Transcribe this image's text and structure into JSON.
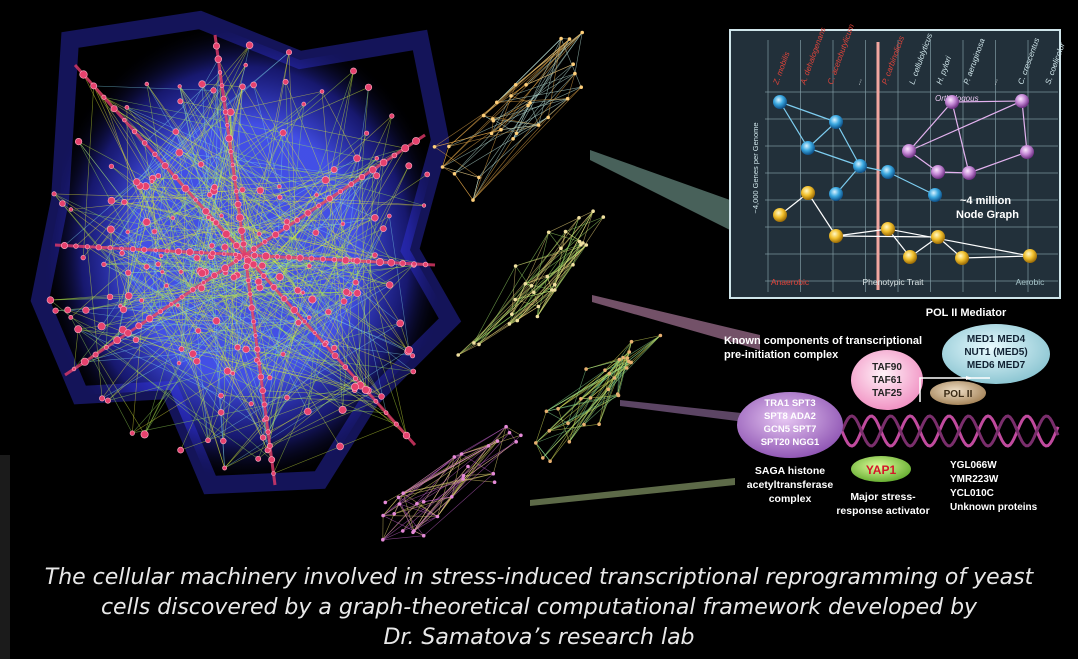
{
  "inset_chart": {
    "species": [
      "Z. mobilis",
      "A. dehalogenans",
      "C. acetobutylicum",
      "...",
      "P. carbinolicus",
      "L. cellulolyticus",
      "H. pylori",
      "P. aeruginosa",
      "...",
      "C. crescentus",
      "S. coelicolor"
    ],
    "ylabel": "~4,000 Genes per Genome",
    "xlabel": "Phenotypic Trait",
    "left_label": "Anaerobic",
    "right_label": "Aerobic",
    "orthologous_label": "Orthologous",
    "node_graph_line1": "~4 million",
    "node_graph_line2": "Node Graph"
  },
  "complexes": {
    "pol2_mediator_title": "POL II Mediator",
    "pol2_mediator_lines": [
      "MED1 MED4",
      "NUT1 (MED5)",
      "MED6 MED7"
    ],
    "known_components_line1": "Known components of transcriptional",
    "known_components_line2": "pre-initiation complex",
    "taf_lines": [
      "TAF90",
      "TAF61",
      "TAF25"
    ],
    "pol2_label": "POL II",
    "saga_lines": [
      "TRA1 SPT3",
      "SPT8 ADA2",
      "GCN5 SPT7",
      "SPT20 NGG1"
    ],
    "saga_caption": [
      "SAGA histone",
      "acetyltransferase",
      "complex"
    ],
    "yap1_label": "YAP1",
    "yap1_caption": [
      "Major stress-",
      "response activator"
    ],
    "unknown_lines": [
      "YGL066W",
      "YMR223W",
      "YCL010C",
      "Unknown proteins"
    ]
  },
  "caption": {
    "line1": "The cellular machinery involved in stress-induced transcriptional reprogramming of yeast",
    "line2": "cells discovered by a graph-theoretical computational framework developed by",
    "line3": "Dr. Samatova’s research lab"
  },
  "colors": {
    "background": "#000000",
    "blue_node": "#3aa8e0",
    "yellow_node": "#f2c12e",
    "purple_node": "#c58ad6",
    "taf_node": "#f7b8d8",
    "mediator_node": "#a9d6de",
    "saga_node": "#b27ad0",
    "yap1_node": "#8fd14f",
    "pol2_node": "#c8aa82"
  }
}
